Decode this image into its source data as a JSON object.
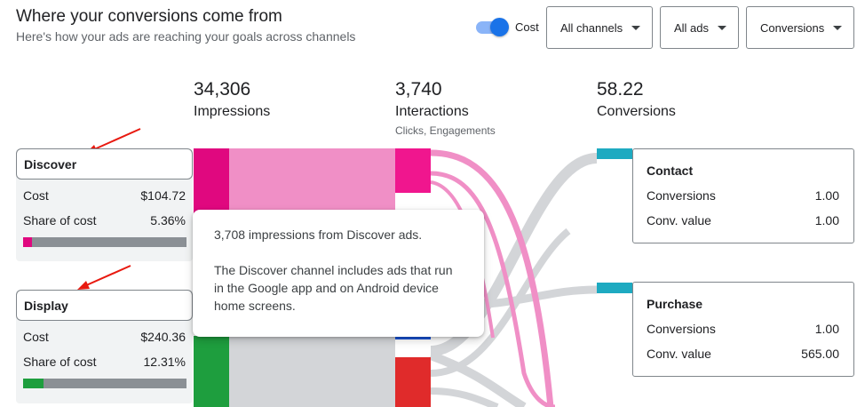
{
  "header": {
    "title": "Where your conversions come from",
    "subtitle": "Here's how your ads are reaching your goals across channels"
  },
  "controls": {
    "cost_toggle": {
      "label": "Cost",
      "on": true
    },
    "channels_dropdown": "All channels",
    "ads_dropdown": "All ads",
    "metric_dropdown": "Conversions"
  },
  "columns": {
    "impressions": {
      "value": "34,306",
      "label": "Impressions"
    },
    "interactions": {
      "value": "3,740",
      "label": "Interactions",
      "sublabel": "Clicks, Engagements"
    },
    "conversions": {
      "value": "58.22",
      "label": "Conversions"
    }
  },
  "channels": [
    {
      "name": "Discover",
      "cost_label": "Cost",
      "cost": "$104.72",
      "share_label": "Share of cost",
      "share": "5.36%",
      "share_fraction": 0.0536,
      "color": "#e0087f"
    },
    {
      "name": "Display",
      "cost_label": "Cost",
      "cost": "$240.36",
      "share_label": "Share of cost",
      "share": "12.31%",
      "share_fraction": 0.1231,
      "color": "#1e9e3e"
    }
  ],
  "goals": [
    {
      "name": "Contact",
      "conv_label": "Conversions",
      "conversions": "1.00",
      "value_label": "Conv. value",
      "value": "1.00"
    },
    {
      "name": "Purchase",
      "conv_label": "Conversions",
      "conversions": "1.00",
      "value_label": "Conv. value",
      "value": "565.00"
    }
  ],
  "tooltip": {
    "line1": "3,708 impressions from Discover ads.",
    "line2": "The Discover channel includes ads that run in the Google app and on Android device home screens."
  },
  "colors": {
    "discover": "#e0087f",
    "discover_flow": "#f08fc6",
    "display": "#1e9e3e",
    "goal": "#1eaac1",
    "flow_gray": "#d3d5d8",
    "annotation_arrow": "#e8190f",
    "red_node": "#e02b2b",
    "blue_node": "#1a56db"
  }
}
